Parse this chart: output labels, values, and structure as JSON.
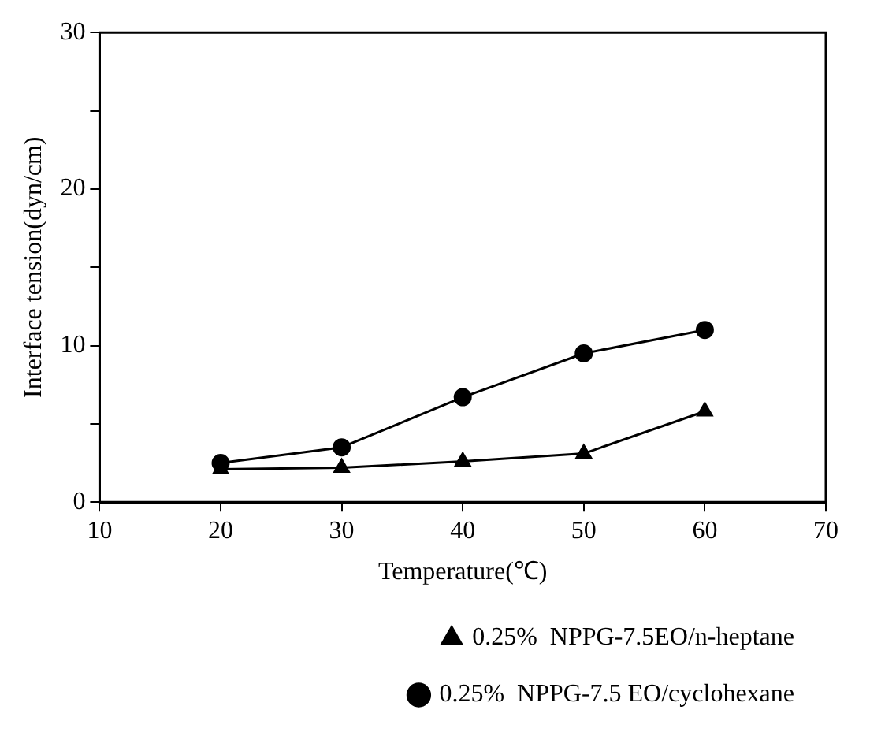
{
  "chart_data": {
    "type": "line",
    "xlabel": "Temperature(℃)",
    "ylabel": "Interface tension(dyn/cm)",
    "x": [
      20,
      30,
      40,
      50,
      60
    ],
    "series": [
      {
        "name": "0.25%  NPPG-7.5 EO/cyclohexane",
        "color": "#000000",
        "marker": "circle",
        "values": [
          2.5,
          3.5,
          6.7,
          9.5,
          11.0
        ]
      },
      {
        "name": "0.25%  NPPG-7.5EO/n-heptane",
        "color": "#000000",
        "marker": "triangle",
        "values": [
          2.1,
          2.2,
          2.6,
          3.1,
          5.8
        ]
      }
    ],
    "xlim": [
      10,
      70
    ],
    "xticks": [
      10,
      20,
      30,
      40,
      50,
      60,
      70
    ],
    "ylim": [
      0,
      30
    ],
    "yticks": [
      0,
      {
        "value": 5,
        "label": null
      },
      10,
      {
        "value": 15,
        "label": null
      },
      20,
      {
        "value": 25,
        "label": null
      },
      30
    ],
    "grid": false,
    "legend": "bottom right",
    "line_style": "solid"
  }
}
